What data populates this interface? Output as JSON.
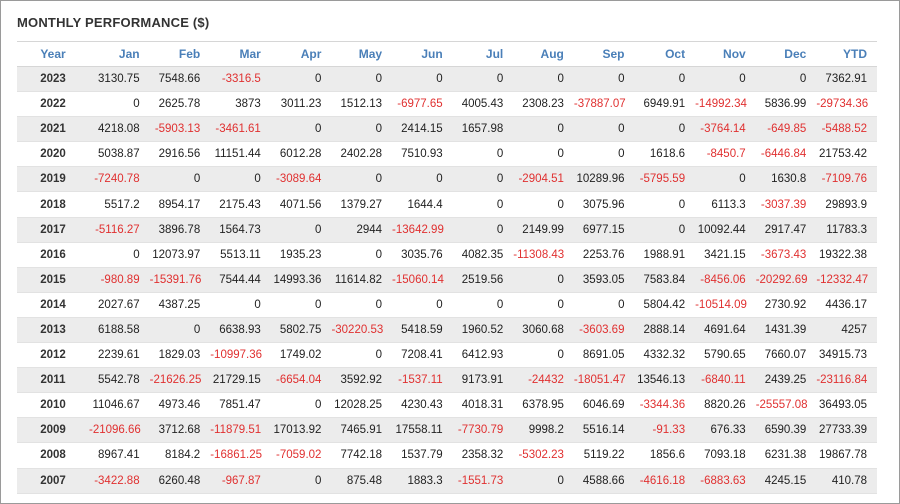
{
  "title": "MONTHLY PERFORMANCE ($)",
  "colors": {
    "header_text": "#4a7fb8",
    "negative": "#e03030",
    "stripe": "#ececec"
  },
  "columns": [
    "Year",
    "Jan",
    "Feb",
    "Mar",
    "Apr",
    "May",
    "Jun",
    "Jul",
    "Aug",
    "Sep",
    "Oct",
    "Nov",
    "Dec",
    "YTD"
  ],
  "rows": [
    [
      "2023",
      "3130.75",
      "7548.66",
      "-3316.5",
      "0",
      "0",
      "0",
      "0",
      "0",
      "0",
      "0",
      "0",
      "0",
      "7362.91"
    ],
    [
      "2022",
      "0",
      "2625.78",
      "3873",
      "3011.23",
      "1512.13",
      "-6977.65",
      "4005.43",
      "2308.23",
      "-37887.07",
      "6949.91",
      "-14992.34",
      "5836.99",
      "-29734.36"
    ],
    [
      "2021",
      "4218.08",
      "-5903.13",
      "-3461.61",
      "0",
      "0",
      "2414.15",
      "1657.98",
      "0",
      "0",
      "0",
      "-3764.14",
      "-649.85",
      "-5488.52"
    ],
    [
      "2020",
      "5038.87",
      "2916.56",
      "11151.44",
      "6012.28",
      "2402.28",
      "7510.93",
      "0",
      "0",
      "0",
      "1618.6",
      "-8450.7",
      "-6446.84",
      "21753.42"
    ],
    [
      "2019",
      "-7240.78",
      "0",
      "0",
      "-3089.64",
      "0",
      "0",
      "0",
      "-2904.51",
      "10289.96",
      "-5795.59",
      "0",
      "1630.8",
      "-7109.76"
    ],
    [
      "2018",
      "5517.2",
      "8954.17",
      "2175.43",
      "4071.56",
      "1379.27",
      "1644.4",
      "0",
      "0",
      "3075.96",
      "0",
      "6113.3",
      "-3037.39",
      "29893.9"
    ],
    [
      "2017",
      "-5116.27",
      "3896.78",
      "1564.73",
      "0",
      "2944",
      "-13642.99",
      "0",
      "2149.99",
      "6977.15",
      "0",
      "10092.44",
      "2917.47",
      "11783.3"
    ],
    [
      "2016",
      "0",
      "12073.97",
      "5513.11",
      "1935.23",
      "0",
      "3035.76",
      "4082.35",
      "-11308.43",
      "2253.76",
      "1988.91",
      "3421.15",
      "-3673.43",
      "19322.38"
    ],
    [
      "2015",
      "-980.89",
      "-15391.76",
      "7544.44",
      "14993.36",
      "11614.82",
      "-15060.14",
      "2519.56",
      "0",
      "3593.05",
      "7583.84",
      "-8456.06",
      "-20292.69",
      "-12332.47"
    ],
    [
      "2014",
      "2027.67",
      "4387.25",
      "0",
      "0",
      "0",
      "0",
      "0",
      "0",
      "0",
      "5804.42",
      "-10514.09",
      "2730.92",
      "4436.17"
    ],
    [
      "2013",
      "6188.58",
      "0",
      "6638.93",
      "5802.75",
      "-30220.53",
      "5418.59",
      "1960.52",
      "3060.68",
      "-3603.69",
      "2888.14",
      "4691.64",
      "1431.39",
      "4257"
    ],
    [
      "2012",
      "2239.61",
      "1829.03",
      "-10997.36",
      "1749.02",
      "0",
      "7208.41",
      "6412.93",
      "0",
      "8691.05",
      "4332.32",
      "5790.65",
      "7660.07",
      "34915.73"
    ],
    [
      "2011",
      "5542.78",
      "-21626.25",
      "21729.15",
      "-6654.04",
      "3592.92",
      "-1537.11",
      "9173.91",
      "-24432",
      "-18051.47",
      "13546.13",
      "-6840.11",
      "2439.25",
      "-23116.84"
    ],
    [
      "2010",
      "11046.67",
      "4973.46",
      "7851.47",
      "0",
      "12028.25",
      "4230.43",
      "4018.31",
      "6378.95",
      "6046.69",
      "-3344.36",
      "8820.26",
      "-25557.08",
      "36493.05"
    ],
    [
      "2009",
      "-21096.66",
      "3712.68",
      "-11879.51",
      "17013.92",
      "7465.91",
      "17558.11",
      "-7730.79",
      "9998.2",
      "5516.14",
      "-91.33",
      "676.33",
      "6590.39",
      "27733.39"
    ],
    [
      "2008",
      "8967.41",
      "8184.2",
      "-16861.25",
      "-7059.02",
      "7742.18",
      "1537.79",
      "2358.32",
      "-5302.23",
      "5119.22",
      "1856.6",
      "7093.18",
      "6231.38",
      "19867.78"
    ],
    [
      "2007",
      "-3422.88",
      "6260.48",
      "-967.87",
      "0",
      "875.48",
      "1883.3",
      "-1551.73",
      "0",
      "4588.66",
      "-4616.18",
      "-6883.63",
      "4245.15",
      "410.78"
    ]
  ]
}
